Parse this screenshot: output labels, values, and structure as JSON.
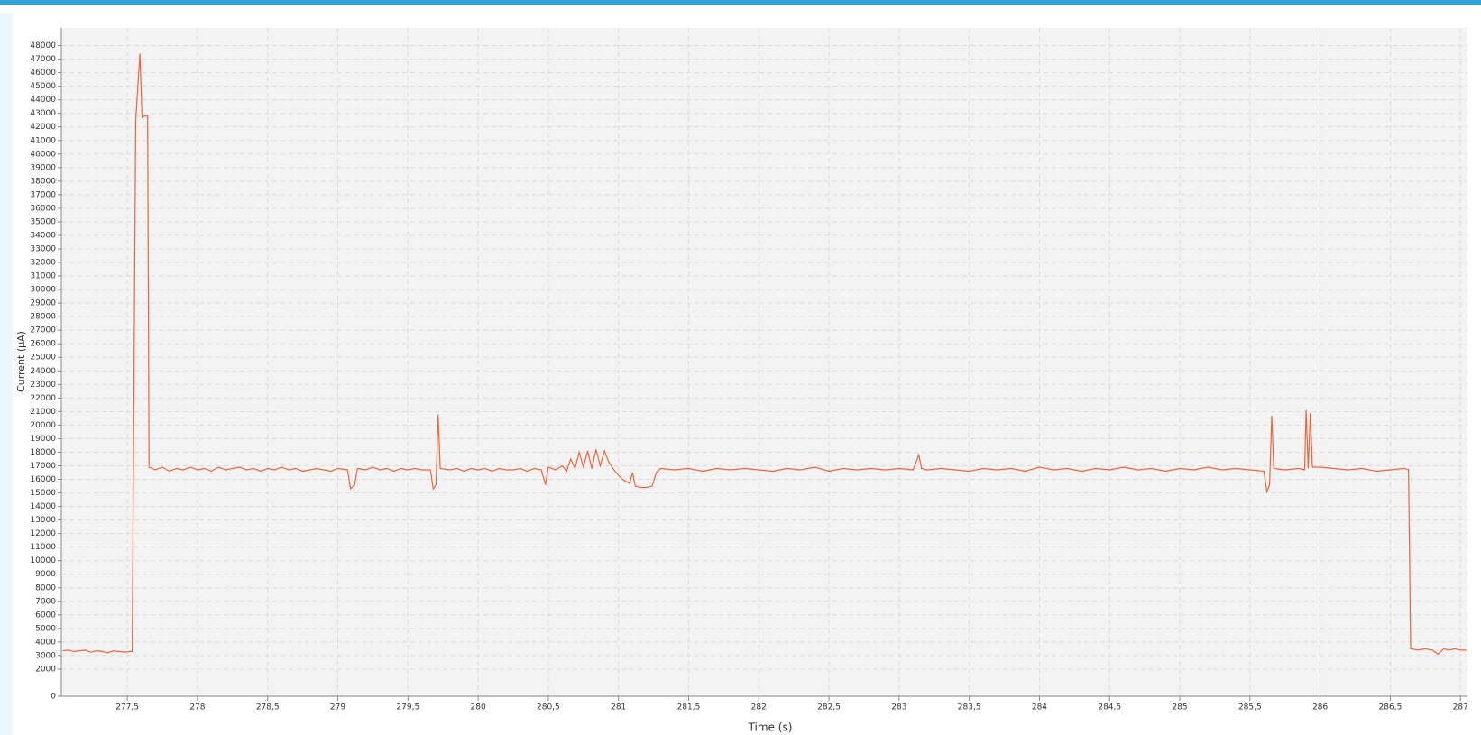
{
  "chart_data": {
    "type": "line",
    "x_label": "Time (s)",
    "y_label": "Current (µA)",
    "color": "#f0643a",
    "grid": true,
    "xlim": [
      277.03,
      287.05
    ],
    "ylim": [
      0,
      49300
    ],
    "xticks": [
      {
        "value": 277.5,
        "label": "277,5"
      },
      278,
      {
        "value": 278.5,
        "label": "278,5"
      },
      279,
      {
        "value": 279.5,
        "label": "279,5"
      },
      280,
      {
        "value": 280.5,
        "label": "280,5"
      },
      281,
      {
        "value": 281.5,
        "label": "281,5"
      },
      282,
      {
        "value": 282.5,
        "label": "282,5"
      },
      283,
      {
        "value": 283.5,
        "label": "283,5"
      },
      284,
      {
        "value": 284.5,
        "label": "284,5"
      },
      285,
      {
        "value": 285.5,
        "label": "285,5"
      },
      286,
      {
        "value": 286.5,
        "label": "286,5"
      },
      287
    ],
    "yticks": [
      0,
      2000,
      3000,
      4000,
      5000,
      6000,
      7000,
      8000,
      9000,
      10000,
      11000,
      12000,
      13000,
      14000,
      15000,
      16000,
      17000,
      18000,
      19000,
      20000,
      21000,
      22000,
      23000,
      24000,
      25000,
      26000,
      27000,
      28000,
      29000,
      30000,
      31000,
      32000,
      33000,
      34000,
      35000,
      36000,
      37000,
      38000,
      39000,
      40000,
      41000,
      42000,
      43000,
      44000,
      45000,
      46000,
      47000,
      48000
    ],
    "x": [
      277.04,
      277.08,
      277.12,
      277.16,
      277.2,
      277.24,
      277.28,
      277.32,
      277.36,
      277.4,
      277.44,
      277.48,
      277.52,
      277.535,
      277.56,
      277.59,
      277.605,
      277.62,
      277.645,
      277.655,
      277.7,
      277.75,
      277.8,
      277.85,
      277.9,
      277.95,
      278,
      278.05,
      278.1,
      278.15,
      278.2,
      278.25,
      278.3,
      278.35,
      278.4,
      278.45,
      278.5,
      278.55,
      278.6,
      278.65,
      278.7,
      278.75,
      278.8,
      278.85,
      278.9,
      278.95,
      279,
      279.07,
      279.09,
      279.12,
      279.14,
      279.2,
      279.25,
      279.3,
      279.35,
      279.4,
      279.45,
      279.5,
      279.55,
      279.6,
      279.66,
      279.68,
      279.7,
      279.715,
      279.73,
      279.8,
      279.85,
      279.9,
      279.95,
      280,
      280.05,
      280.1,
      280.15,
      280.2,
      280.25,
      280.3,
      280.35,
      280.4,
      280.45,
      280.48,
      280.5,
      280.55,
      280.6,
      280.63,
      280.66,
      280.69,
      280.72,
      280.75,
      280.78,
      280.81,
      280.84,
      280.87,
      280.9,
      280.93,
      280.96,
      281,
      281.03,
      281.06,
      281.08,
      281.1,
      281.12,
      281.16,
      281.2,
      281.24,
      281.27,
      281.3,
      281.4,
      281.5,
      281.6,
      281.7,
      281.8,
      281.9,
      282,
      282.1,
      282.2,
      282.3,
      282.4,
      282.5,
      282.6,
      282.7,
      282.8,
      282.9,
      283,
      283.1,
      283.14,
      283.16,
      283.2,
      283.3,
      283.4,
      283.5,
      283.6,
      283.7,
      283.8,
      283.9,
      284,
      284.1,
      284.2,
      284.3,
      284.4,
      284.5,
      284.6,
      284.7,
      284.8,
      284.9,
      285,
      285.1,
      285.2,
      285.3,
      285.4,
      285.5,
      285.6,
      285.62,
      285.64,
      285.655,
      285.67,
      285.75,
      285.85,
      285.89,
      285.9,
      285.915,
      285.93,
      285.945,
      286,
      286.1,
      286.2,
      286.3,
      286.4,
      286.5,
      286.6,
      286.63,
      286.645,
      286.7,
      286.75,
      286.8,
      286.84,
      286.88,
      286.92,
      286.96,
      287,
      287.04
    ],
    "values": [
      3350,
      3400,
      3300,
      3350,
      3400,
      3250,
      3350,
      3300,
      3200,
      3350,
      3300,
      3250,
      3300,
      3300,
      42500,
      47400,
      42700,
      42800,
      42800,
      16900,
      16700,
      16900,
      16600,
      16800,
      16700,
      16900,
      16700,
      16800,
      16600,
      16900,
      16700,
      16800,
      16900,
      16700,
      16800,
      16600,
      16800,
      16700,
      16900,
      16700,
      16800,
      16600,
      16700,
      16800,
      16700,
      16600,
      16800,
      16700,
      15300,
      15600,
      16800,
      16700,
      16900,
      16700,
      16800,
      16600,
      16800,
      16700,
      16800,
      16700,
      16700,
      15300,
      15600,
      20800,
      16800,
      16700,
      16800,
      16600,
      16800,
      16700,
      16800,
      16600,
      16800,
      16700,
      16700,
      16800,
      16600,
      16800,
      16700,
      15600,
      16900,
      16700,
      17000,
      16600,
      17500,
      16800,
      18000,
      16900,
      18100,
      16800,
      18200,
      17000,
      18100,
      17300,
      16800,
      16300,
      16000,
      15800,
      15700,
      16500,
      15500,
      15400,
      15400,
      15500,
      16500,
      16800,
      16700,
      16800,
      16600,
      16800,
      16700,
      16800,
      16700,
      16600,
      16800,
      16700,
      16900,
      16600,
      16800,
      16700,
      16800,
      16700,
      16800,
      16700,
      17800,
      16800,
      16700,
      16800,
      16700,
      16600,
      16800,
      16700,
      16800,
      16600,
      16900,
      16700,
      16800,
      16600,
      16800,
      16700,
      16900,
      16700,
      16800,
      16600,
      16800,
      16700,
      16900,
      16700,
      16800,
      16700,
      16600,
      15100,
      15600,
      20700,
      16800,
      16700,
      16800,
      16700,
      21100,
      16800,
      20900,
      16900,
      16900,
      16800,
      16700,
      16800,
      16600,
      16700,
      16800,
      16700,
      3500,
      3400,
      3500,
      3400,
      3100,
      3500,
      3400,
      3500,
      3400,
      3400
    ]
  }
}
